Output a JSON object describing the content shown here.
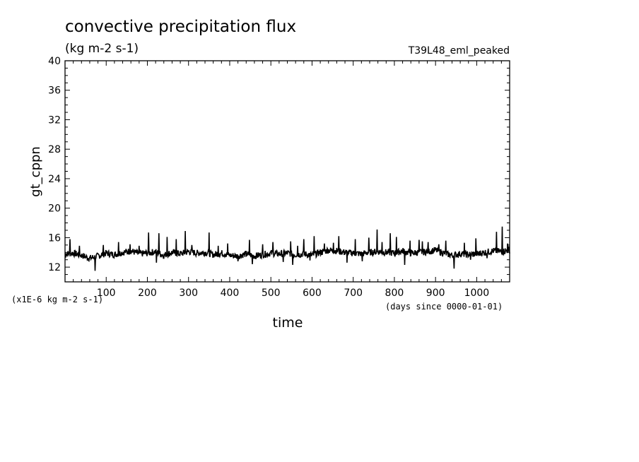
{
  "chart_data": {
    "type": "line",
    "title": "convective precipitation flux",
    "units": "(kg m-2 s-1)",
    "run_name": "T39L48_eml_peaked",
    "ylabel": "gt_cppn",
    "xlabel": "time",
    "x_units": "(days since 0000-01-01)",
    "y_scale_note": "(x1E-6 kg m-2 s-1)",
    "xlim": [
      0,
      1080
    ],
    "ylim": [
      10,
      40
    ],
    "x_ticks": [
      100,
      200,
      300,
      400,
      500,
      600,
      700,
      800,
      900,
      1000
    ],
    "y_ticks": [
      12,
      16,
      20,
      24,
      28,
      32,
      36,
      40
    ],
    "grid": false,
    "series": [
      {
        "color": "#000000",
        "x": [
          0,
          20,
          40,
          60,
          80,
          100,
          120,
          140,
          160,
          180,
          200,
          220,
          240,
          260,
          280,
          300,
          320,
          340,
          360,
          380,
          400,
          420,
          440,
          460,
          480,
          500,
          520,
          540,
          560,
          580,
          600,
          620,
          640,
          660,
          680,
          700,
          720,
          740,
          760,
          780,
          800,
          820,
          840,
          860,
          880,
          900,
          920,
          940,
          960,
          980,
          1000,
          1020,
          1040,
          1060,
          1080
        ],
        "values": [
          13.8,
          13.9,
          13.6,
          13.2,
          13.5,
          13.9,
          13.7,
          14.0,
          14.2,
          13.8,
          13.9,
          14.1,
          13.6,
          14.0,
          13.8,
          14.1,
          13.9,
          14.0,
          13.7,
          13.9,
          13.6,
          13.5,
          13.8,
          13.5,
          13.7,
          13.9,
          13.8,
          13.9,
          13.7,
          13.8,
          13.6,
          14.0,
          14.3,
          14.2,
          14.0,
          13.9,
          13.8,
          14.0,
          14.1,
          14.0,
          13.9,
          14.2,
          13.9,
          14.0,
          14.1,
          14.3,
          13.9,
          13.6,
          13.8,
          13.7,
          13.8,
          14.0,
          14.2,
          14.1,
          14.3
        ],
        "peaks": [
          {
            "x": 12,
            "y": 15.8
          },
          {
            "x": 35,
            "y": 14.9
          },
          {
            "x": 73,
            "y": 11.5
          },
          {
            "x": 93,
            "y": 15.0
          },
          {
            "x": 130,
            "y": 15.4
          },
          {
            "x": 158,
            "y": 15.1
          },
          {
            "x": 180,
            "y": 14.9
          },
          {
            "x": 203,
            "y": 16.7
          },
          {
            "x": 222,
            "y": 12.6
          },
          {
            "x": 228,
            "y": 16.6
          },
          {
            "x": 248,
            "y": 16.1
          },
          {
            "x": 270,
            "y": 15.8
          },
          {
            "x": 292,
            "y": 16.9
          },
          {
            "x": 308,
            "y": 15.0
          },
          {
            "x": 350,
            "y": 16.7
          },
          {
            "x": 372,
            "y": 14.9
          },
          {
            "x": 395,
            "y": 15.2
          },
          {
            "x": 420,
            "y": 12.8
          },
          {
            "x": 448,
            "y": 15.7
          },
          {
            "x": 455,
            "y": 12.4
          },
          {
            "x": 480,
            "y": 15.1
          },
          {
            "x": 505,
            "y": 15.4
          },
          {
            "x": 530,
            "y": 12.7
          },
          {
            "x": 548,
            "y": 15.5
          },
          {
            "x": 553,
            "y": 12.3
          },
          {
            "x": 565,
            "y": 14.9
          },
          {
            "x": 580,
            "y": 15.8
          },
          {
            "x": 595,
            "y": 12.9
          },
          {
            "x": 605,
            "y": 16.2
          },
          {
            "x": 630,
            "y": 15.2
          },
          {
            "x": 652,
            "y": 15.3
          },
          {
            "x": 665,
            "y": 16.2
          },
          {
            "x": 685,
            "y": 12.6
          },
          {
            "x": 705,
            "y": 15.8
          },
          {
            "x": 722,
            "y": 12.8
          },
          {
            "x": 738,
            "y": 16.0
          },
          {
            "x": 758,
            "y": 17.1
          },
          {
            "x": 770,
            "y": 15.4
          },
          {
            "x": 790,
            "y": 16.6
          },
          {
            "x": 805,
            "y": 16.1
          },
          {
            "x": 825,
            "y": 12.3
          },
          {
            "x": 838,
            "y": 15.6
          },
          {
            "x": 860,
            "y": 15.7
          },
          {
            "x": 868,
            "y": 15.5
          },
          {
            "x": 882,
            "y": 15.4
          },
          {
            "x": 908,
            "y": 15.1
          },
          {
            "x": 925,
            "y": 15.6
          },
          {
            "x": 945,
            "y": 11.8
          },
          {
            "x": 970,
            "y": 15.3
          },
          {
            "x": 985,
            "y": 13.0
          },
          {
            "x": 998,
            "y": 15.9
          },
          {
            "x": 1025,
            "y": 13.2
          },
          {
            "x": 1048,
            "y": 16.8
          },
          {
            "x": 1062,
            "y": 17.5
          },
          {
            "x": 1075,
            "y": 15.2
          }
        ]
      }
    ]
  }
}
